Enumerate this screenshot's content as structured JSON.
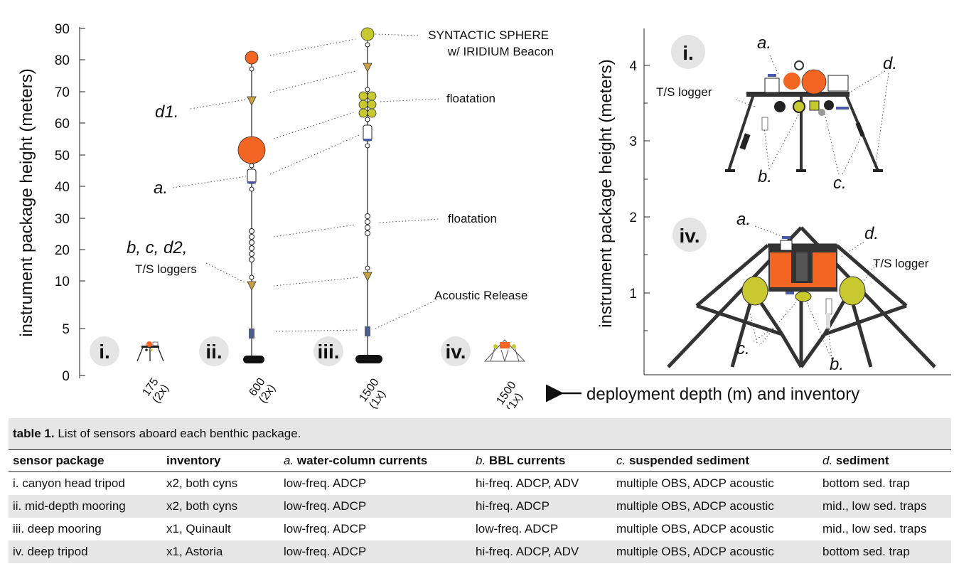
{
  "left_chart": {
    "ylabel": "instrument package height (meters)",
    "y_ticks": [
      "0",
      "5",
      "10",
      "20",
      "30",
      "40",
      "50",
      "60",
      "70",
      "80",
      "90"
    ],
    "y_values": [
      0,
      5,
      10,
      20,
      30,
      40,
      50,
      60,
      70,
      80,
      90
    ],
    "x_label": "deployment depth (m) and inventory",
    "x_ticks": [
      {
        "depth": "175",
        "inventory": "(2x)",
        "package": "i."
      },
      {
        "depth": "600",
        "inventory": "(2x)",
        "package": "ii."
      },
      {
        "depth": "1500",
        "inventory": "(1x)",
        "package": "iii."
      },
      {
        "depth": "1500",
        "inventory": "(1x)",
        "package": "iv."
      }
    ],
    "annotations": {
      "syntactic_sphere_1": "SYNTACTIC SPHERE",
      "syntactic_sphere_2": "w/ IRIDIUM Beacon",
      "floatation_top": "floatation",
      "floatation_mid": "floatation",
      "acoustic_release": "Acoustic Release",
      "d1": "d1.",
      "a": "a.",
      "bcd2": "b, c, d2,",
      "ts_loggers": "T/S loggers"
    },
    "colors": {
      "orange": "#f26522",
      "yellow_green": "#c8c830",
      "triangle": "#c8a040",
      "release": "#4f5f8a",
      "sensor": "#4a5aa8"
    }
  },
  "tripod_i": {
    "badge": "i.",
    "ylabel": "instrument package height (meters)",
    "y_ticks": [
      "1",
      "2",
      "3",
      "4"
    ],
    "labels": {
      "a": "a.",
      "b": "b.",
      "c": "c.",
      "d": "d.",
      "ts": "T/S logger"
    }
  },
  "tripod_iv": {
    "badge": "iv.",
    "labels": {
      "a": "a.",
      "b": "b.",
      "c": "c.",
      "d": "d.",
      "ts": "T/S logger"
    }
  },
  "table": {
    "caption_bold": "table 1.",
    "caption": "List of sensors aboard each benthic package.",
    "headers": [
      {
        "letter": "",
        "label": "sensor package"
      },
      {
        "letter": "",
        "label": "inventory"
      },
      {
        "letter": "a.",
        "label": "water-column currents"
      },
      {
        "letter": "b.",
        "label": "BBL currents"
      },
      {
        "letter": "c.",
        "label": "suspended sediment"
      },
      {
        "letter": "d.",
        "label": "sediment"
      }
    ],
    "rows": [
      [
        "i. canyon head tripod",
        "x2, both cyns",
        "low-freq. ADCP",
        "hi-freq. ADCP, ADV",
        "multiple OBS, ADCP acoustic",
        "bottom sed. trap"
      ],
      [
        "ii. mid-depth mooring",
        "x2, both cyns",
        "low-freq. ADCP",
        "hi-freq. ADCP",
        "multiple OBS, ADCP acoustic",
        "mid., low sed. traps"
      ],
      [
        "iii. deep mooring",
        "x1, Quinault",
        "low-freq. ADCP",
        "low-freq. ADCP",
        "multiple OBS, ADCP acoustic",
        "mid., low sed. traps"
      ],
      [
        "iv. deep tripod",
        "x1, Astoria",
        "low-freq. ADCP",
        "hi-freq. ADCP, ADV",
        "multiple OBS, ADCP acoustic",
        "bottom sed. trap"
      ]
    ]
  }
}
